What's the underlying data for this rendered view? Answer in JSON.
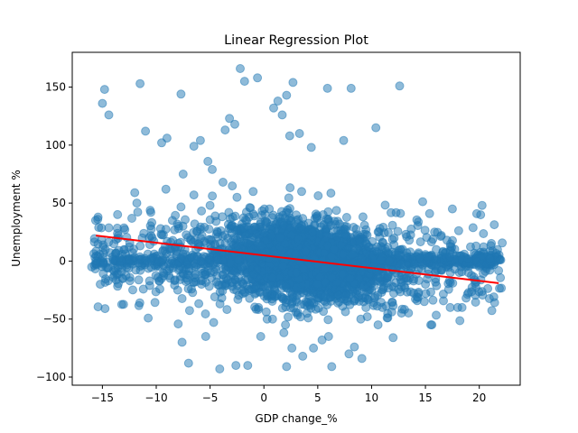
{
  "chart_data": {
    "type": "scatter",
    "title": "Linear Regression Plot",
    "xlabel": "GDP change_%",
    "ylabel": "Unemployment %",
    "xlim": [
      -17.8,
      23.8
    ],
    "ylim": [
      -107,
      180
    ],
    "xticks": [
      -15,
      -10,
      -5,
      0,
      5,
      10,
      15,
      20
    ],
    "yticks": [
      -100,
      -50,
      0,
      50,
      100,
      150
    ],
    "grid": false,
    "colors": {
      "points": "#1f77b4",
      "line": "#ff0000"
    },
    "series": [
      {
        "kind": "scatter",
        "approx_count": 4000,
        "sample_points": [
          [
            -14.8,
            148
          ],
          [
            -15,
            136
          ],
          [
            -14.4,
            126
          ],
          [
            -11.5,
            153
          ],
          [
            -11,
            112
          ],
          [
            -9.5,
            102
          ],
          [
            -9,
            106
          ],
          [
            -7.7,
            144
          ],
          [
            -6.5,
            99
          ],
          [
            -5.9,
            104
          ],
          [
            -5.2,
            86
          ],
          [
            -4.8,
            79
          ],
          [
            -3.6,
            113
          ],
          [
            -3.2,
            123
          ],
          [
            -2.7,
            118
          ],
          [
            -2.2,
            166
          ],
          [
            -1.8,
            155
          ],
          [
            -0.6,
            158
          ],
          [
            0.9,
            132
          ],
          [
            1.3,
            138
          ],
          [
            2.1,
            143
          ],
          [
            2.7,
            154
          ],
          [
            1.7,
            126
          ],
          [
            2.4,
            108
          ],
          [
            3.3,
            110
          ],
          [
            4.4,
            98
          ],
          [
            5.9,
            149
          ],
          [
            7.4,
            104
          ],
          [
            8.1,
            149
          ],
          [
            10.4,
            115
          ],
          [
            12.6,
            151
          ],
          [
            -15.4,
            38
          ],
          [
            -16,
            -5
          ],
          [
            -15.6,
            0
          ],
          [
            -14,
            -14
          ],
          [
            -13,
            10
          ],
          [
            -12,
            59
          ],
          [
            -11.8,
            50
          ],
          [
            -11.3,
            20
          ],
          [
            -10.5,
            42
          ],
          [
            -9.6,
            28
          ],
          [
            -9.1,
            62
          ],
          [
            -8.5,
            35
          ],
          [
            -8,
            -25
          ],
          [
            -7.5,
            75
          ],
          [
            -7,
            -12
          ],
          [
            -6.5,
            57
          ],
          [
            -5.8,
            -20
          ],
          [
            -5,
            48
          ],
          [
            -4.4,
            -18
          ],
          [
            -3.8,
            68
          ],
          [
            -3.5,
            -8
          ],
          [
            -3,
            24
          ],
          [
            -2.5,
            55
          ],
          [
            -2,
            -25
          ],
          [
            -1.5,
            15
          ],
          [
            -1,
            60
          ],
          [
            -0.5,
            -40
          ],
          [
            0,
            5
          ],
          [
            0.5,
            45
          ],
          [
            1,
            -30
          ],
          [
            1.5,
            20
          ],
          [
            2,
            -55
          ],
          [
            2.5,
            35
          ],
          [
            3,
            -10
          ],
          [
            3.5,
            60
          ],
          [
            4,
            -45
          ],
          [
            4.5,
            25
          ],
          [
            5,
            -20
          ],
          [
            5.5,
            40
          ],
          [
            6,
            -65
          ],
          [
            6.5,
            10
          ],
          [
            7,
            -35
          ],
          [
            7.5,
            30
          ],
          [
            8,
            -15
          ],
          [
            8.5,
            22
          ],
          [
            9,
            -50
          ],
          [
            9.5,
            15
          ],
          [
            10,
            -25
          ],
          [
            10.5,
            8
          ],
          [
            11,
            -40
          ],
          [
            11.5,
            12
          ],
          [
            12,
            -8
          ],
          [
            12.5,
            5
          ],
          [
            13,
            -15
          ],
          [
            13.5,
            18
          ],
          [
            14,
            -2
          ],
          [
            14.5,
            3
          ],
          [
            15,
            -20
          ],
          [
            15.5,
            -55
          ],
          [
            16,
            10
          ],
          [
            17,
            18
          ],
          [
            17.5,
            45
          ],
          [
            18,
            -40
          ],
          [
            19,
            2
          ],
          [
            20,
            -5
          ],
          [
            21,
            2
          ],
          [
            22,
            1
          ],
          [
            -7.6,
            -70
          ],
          [
            -7,
            -88
          ],
          [
            -5.4,
            -65
          ],
          [
            -4.1,
            -93
          ],
          [
            -2.6,
            -90
          ],
          [
            -1.5,
            -90
          ],
          [
            -0.3,
            -65
          ],
          [
            0.8,
            -50
          ],
          [
            2.1,
            -91
          ],
          [
            2.6,
            -75
          ],
          [
            3.6,
            -82
          ],
          [
            4.6,
            -75
          ],
          [
            5.4,
            -68
          ],
          [
            6.3,
            -91
          ],
          [
            7.9,
            -80
          ],
          [
            8.4,
            -74
          ],
          [
            9.1,
            -84
          ],
          [
            9.6,
            -48
          ],
          [
            10.6,
            -55
          ],
          [
            12,
            -66
          ],
          [
            15.6,
            -55
          ],
          [
            17.3,
            -40
          ],
          [
            18.4,
            -40
          ]
        ]
      },
      {
        "kind": "line",
        "name": "regression",
        "points": [
          [
            -15.6,
            22
          ],
          [
            21.8,
            -19
          ]
        ]
      }
    ]
  }
}
